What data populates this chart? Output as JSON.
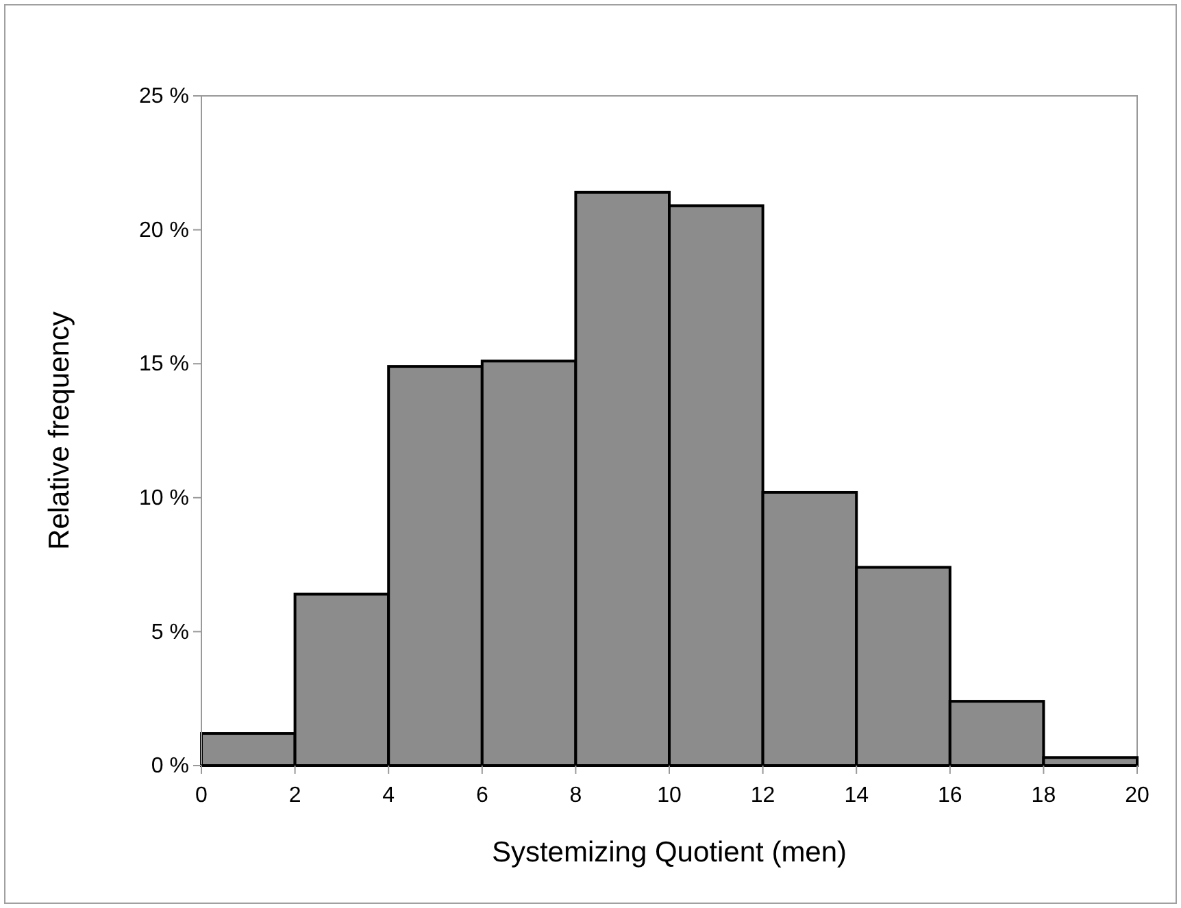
{
  "chart_data": {
    "type": "histogram",
    "xlabel": "Systemizing Quotient (men)",
    "ylabel": "Relative frequency",
    "bins": [
      0,
      2,
      4,
      6,
      8,
      10,
      12,
      14,
      16,
      18,
      20
    ],
    "values": [
      1.2,
      6.4,
      14.9,
      15.1,
      21.4,
      20.9,
      10.2,
      7.4,
      2.4,
      0.3
    ],
    "color": "#8c8c8c",
    "xlim": [
      0,
      20
    ],
    "xticks": [
      0,
      2,
      4,
      6,
      8,
      10,
      12,
      14,
      16,
      18,
      20
    ],
    "ylim": [
      0,
      25
    ],
    "yticks": [
      {
        "value": 0,
        "label": "0 %"
      },
      {
        "value": 5,
        "label": "5 %"
      },
      {
        "value": 10,
        "label": "10 %"
      },
      {
        "value": 15,
        "label": "15 %"
      },
      {
        "value": 20,
        "label": "20 %"
      },
      {
        "value": 25,
        "label": "25 %"
      }
    ],
    "grid": false
  }
}
